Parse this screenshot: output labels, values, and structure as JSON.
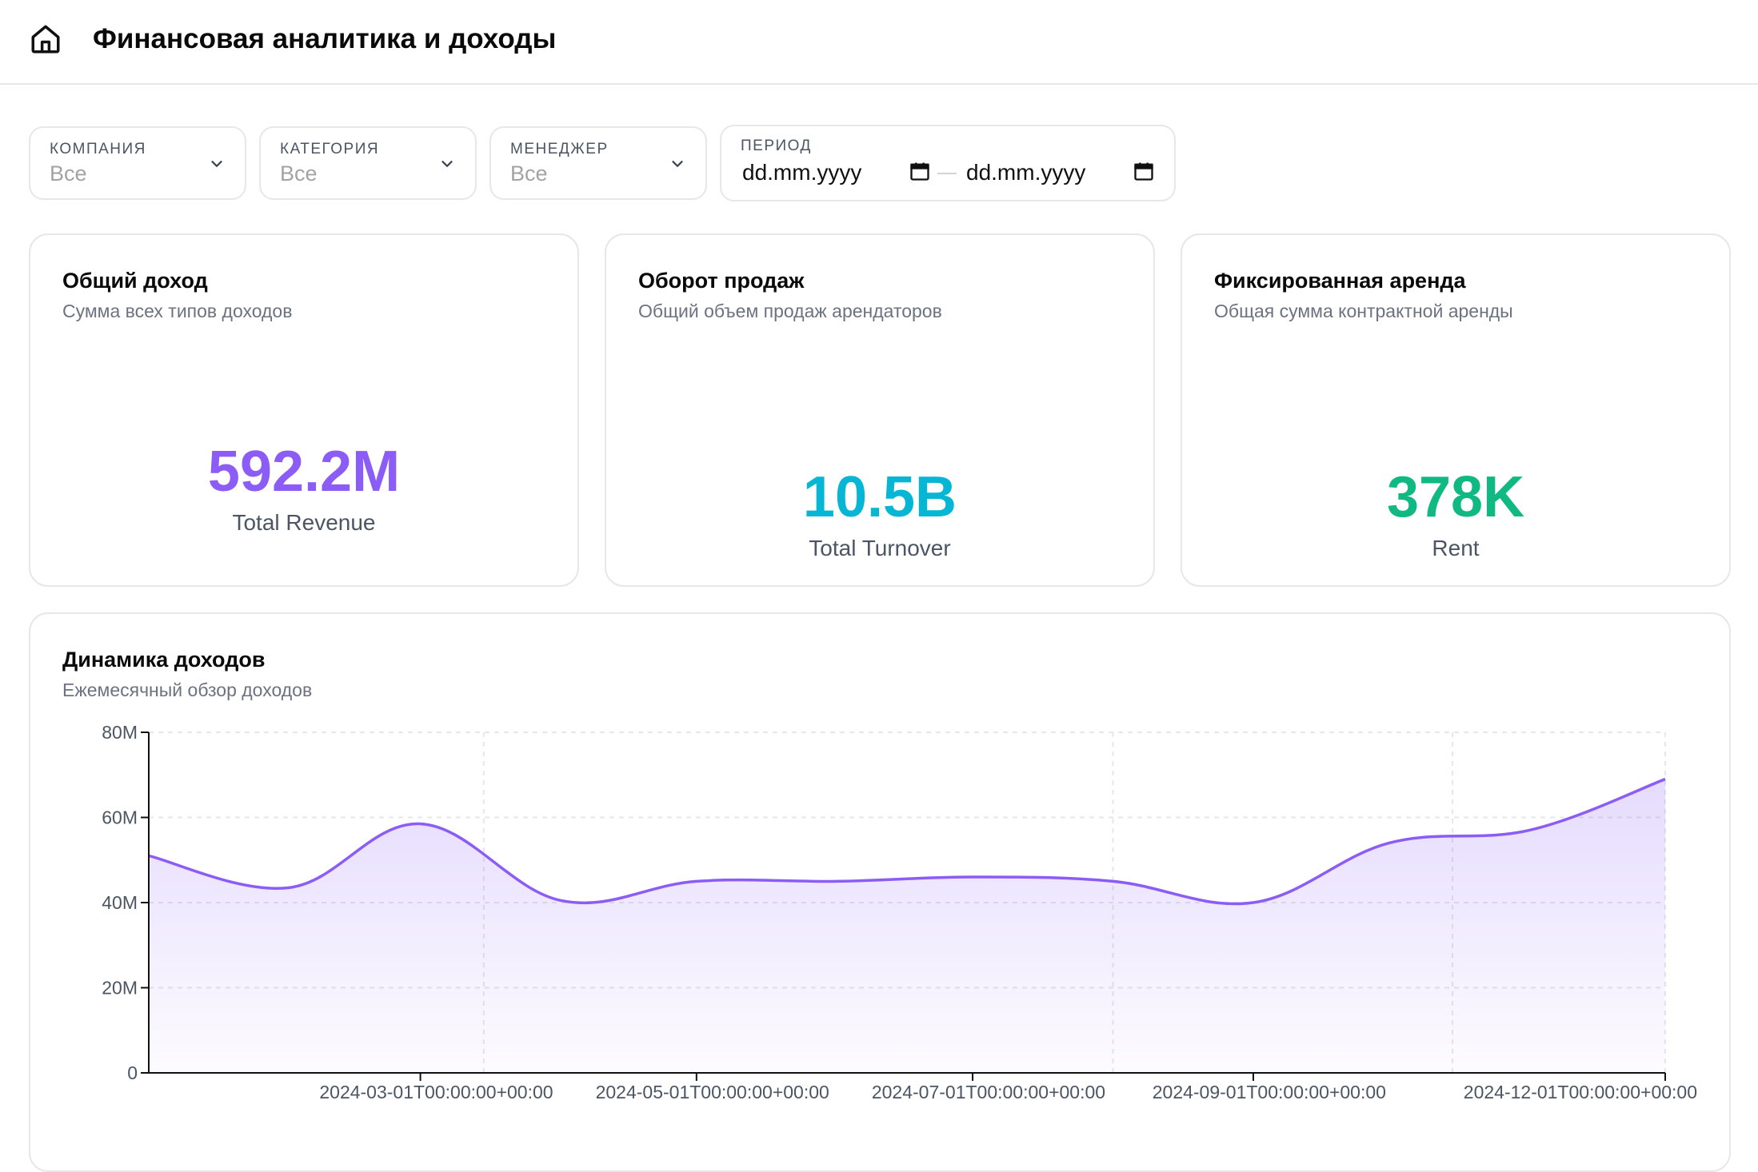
{
  "header": {
    "title": "Финансовая аналитика и доходы",
    "home_icon": "home-icon"
  },
  "filters": {
    "company": {
      "label": "Компания",
      "value": "Все"
    },
    "category": {
      "label": "Категория",
      "value": "Все"
    },
    "manager": {
      "label": "Менеджер",
      "value": "Все"
    },
    "period": {
      "label": "Период",
      "from_placeholder": "dd.mm.yyyy",
      "to_placeholder": "dd.mm.yyyy"
    }
  },
  "kpis": [
    {
      "title": "Общий доход",
      "subtitle": "Сумма всех типов доходов",
      "value": "592.2M",
      "label": "Total Revenue",
      "color": "#8b5cf6"
    },
    {
      "title": "Оборот продаж",
      "subtitle": "Общий объем продаж арендаторов",
      "value": "10.5B",
      "label": "Total Turnover",
      "color": "#06b6d4"
    },
    {
      "title": "Фиксированная аренда",
      "subtitle": "Общая сумма контрактной аренды",
      "value": "378K",
      "label": "Rent",
      "color": "#10b981"
    }
  ],
  "revenue_chart": {
    "title": "Динамика доходов",
    "subtitle": "Ежемесячный обзор доходов"
  },
  "chart_data": {
    "type": "area",
    "x": [
      "2024-01-01",
      "2024-02-01",
      "2024-03-01",
      "2024-04-01",
      "2024-05-01",
      "2024-06-01",
      "2024-07-01",
      "2024-08-01",
      "2024-09-01",
      "2024-10-01",
      "2024-11-01",
      "2024-12-01"
    ],
    "series": [
      {
        "values": [
          51,
          43.5,
          58.5,
          40.5,
          45,
          45,
          46,
          45,
          40,
          54,
          57,
          69
        ],
        "color": "#8b5cf6"
      }
    ],
    "x_tick_labels": [
      "2024-03-01T00:00:00+00:00",
      "2024-05-01T00:00:00+00:00",
      "2024-07-01T00:00:00+00:00",
      "2024-09-01T00:00:00+00:00",
      "2024-12-01T00:00:00+00:00"
    ],
    "y_ticks": [
      0,
      20,
      40,
      60,
      80
    ],
    "y_tick_labels": [
      "0",
      "20M",
      "40M",
      "60M",
      "80M"
    ],
    "ylim": [
      0,
      80
    ],
    "grid": true,
    "curve": "smooth"
  }
}
